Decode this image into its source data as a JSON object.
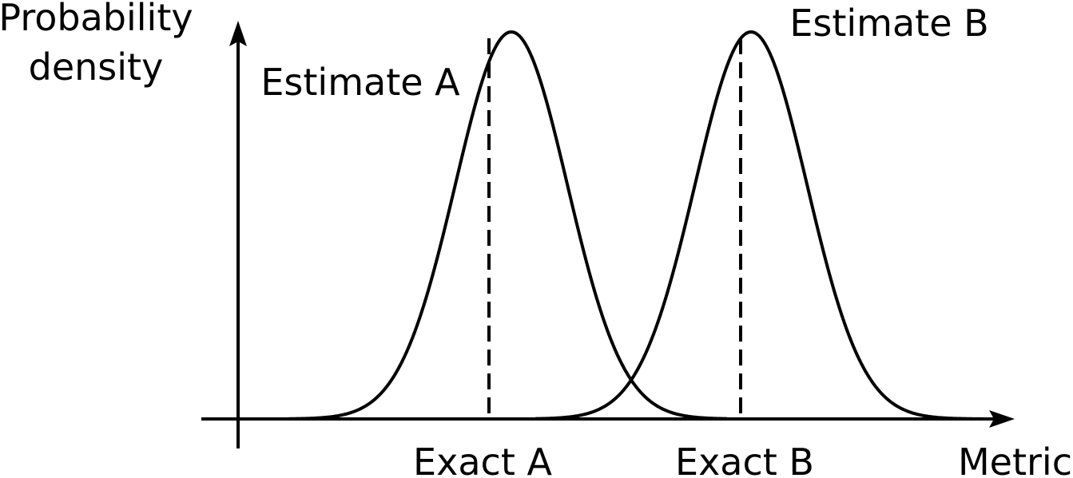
{
  "diagram": {
    "y_axis_label": [
      "Probability",
      "density"
    ],
    "x_axis_label": "Metric",
    "curves": [
      {
        "estimate_label": "Estimate A",
        "exact_label": "Exact A",
        "peak": 1.0,
        "mean": 0.0
      },
      {
        "estimate_label": "Estimate B",
        "exact_label": "Exact B",
        "peak": 1.0,
        "mean": 1.0
      }
    ],
    "colors": {
      "ink": "#000000",
      "background": "#ffffff"
    }
  }
}
